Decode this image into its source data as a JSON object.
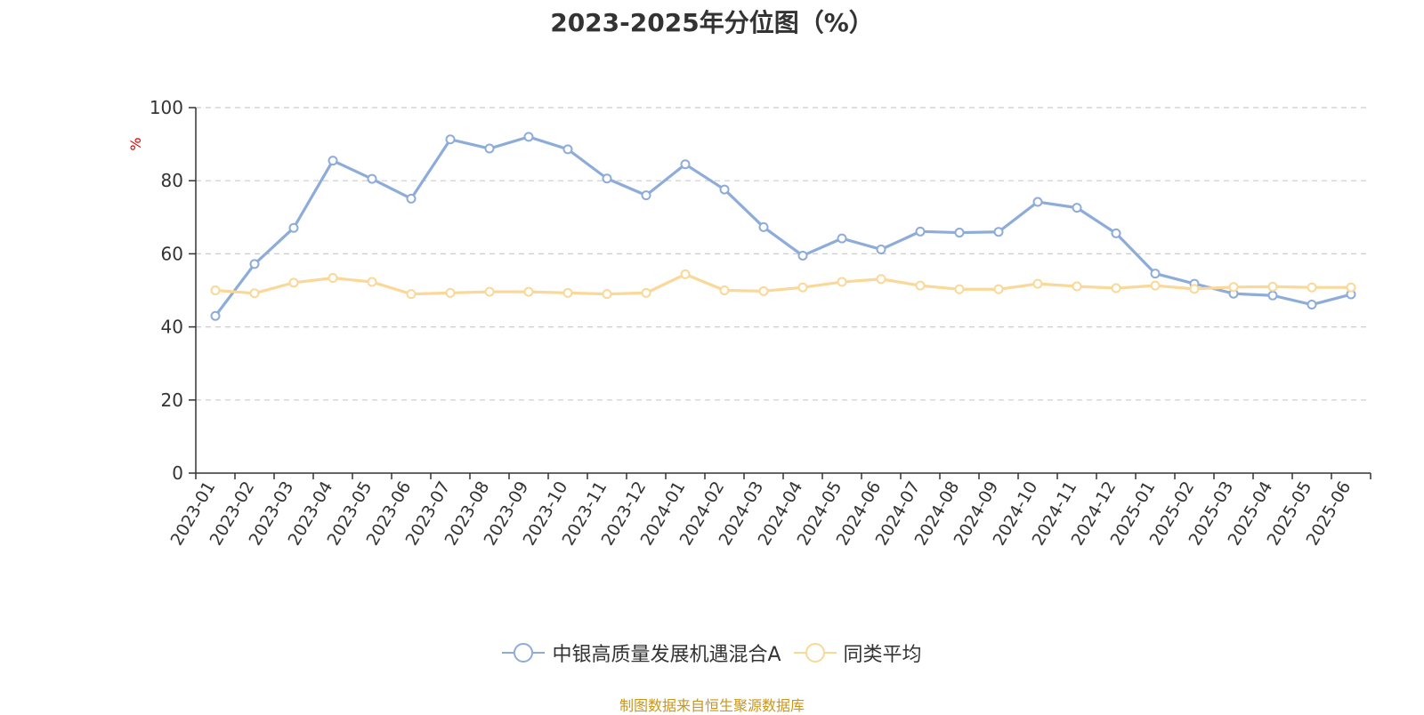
{
  "chart_data": {
    "type": "line",
    "title": "2023-2025年分位图（%）",
    "ylabel": "%",
    "xlabel": "",
    "ylim": [
      0,
      100
    ],
    "yticks": [
      0,
      20,
      40,
      60,
      80,
      100
    ],
    "grid": "horizontal-dashed",
    "legend_position": "bottom",
    "categories": [
      "2023-01",
      "2023-02",
      "2023-03",
      "2023-04",
      "2023-05",
      "2023-06",
      "2023-07",
      "2023-08",
      "2023-09",
      "2023-10",
      "2023-11",
      "2023-12",
      "2024-01",
      "2024-02",
      "2024-03",
      "2024-04",
      "2024-05",
      "2024-06",
      "2024-07",
      "2024-08",
      "2024-09",
      "2024-10",
      "2024-11",
      "2024-12",
      "2025-01",
      "2025-02",
      "2025-03",
      "2025-04",
      "2025-05",
      "2025-06"
    ],
    "series": [
      {
        "name": "中银高质量发展机遇混合A",
        "color": "#8eacd9",
        "values": [
          43.0,
          57.2,
          67.1,
          85.5,
          80.5,
          75.1,
          91.3,
          88.8,
          92.0,
          88.6,
          80.6,
          76.0,
          84.5,
          77.6,
          67.3,
          59.5,
          64.2,
          61.2,
          66.1,
          65.8,
          66.0,
          74.2,
          72.6,
          65.6,
          54.6,
          51.8,
          49.1,
          48.6,
          46.1,
          48.9
        ]
      },
      {
        "name": "同类平均",
        "color": "#f9d898",
        "values": [
          50.0,
          49.2,
          52.1,
          53.4,
          52.3,
          49.0,
          49.3,
          49.6,
          49.6,
          49.3,
          49.0,
          49.3,
          54.4,
          50.0,
          49.8,
          50.8,
          52.3,
          53.1,
          51.3,
          50.3,
          50.3,
          51.8,
          51.1,
          50.6,
          51.3,
          50.4,
          50.9,
          51.0,
          50.8,
          50.8
        ]
      }
    ]
  },
  "footer": {
    "source": "制图数据来自恒生聚源数据库"
  }
}
